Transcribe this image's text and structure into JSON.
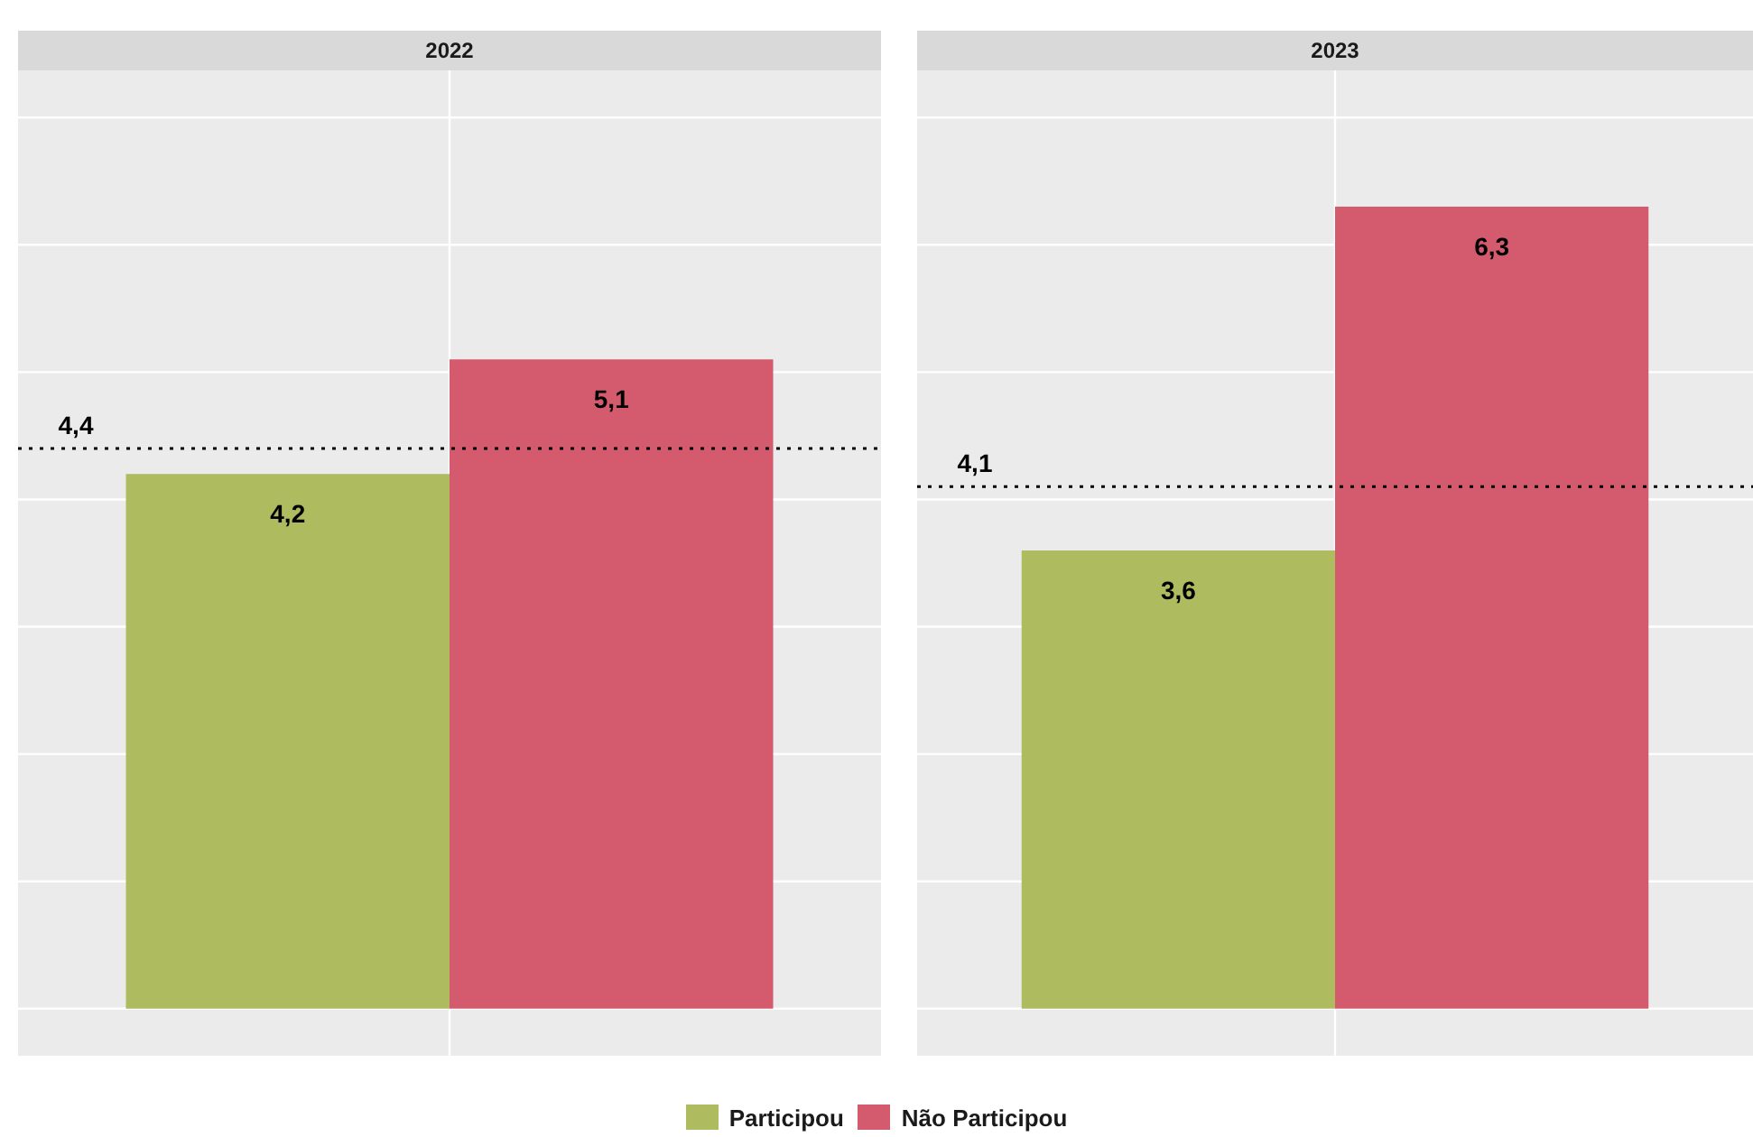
{
  "chart_data": [
    {
      "type": "bar",
      "title": "2022",
      "categories": [
        null
      ],
      "series": [
        {
          "name": "Participou",
          "color": "#afbb5f",
          "values": [
            4.2
          ],
          "value_labels": [
            "4,2"
          ]
        },
        {
          "name": "Não Participou",
          "color": "#d45b6d",
          "values": [
            5.1
          ],
          "value_labels": [
            "5,1"
          ]
        }
      ],
      "ylim": [
        -0.37,
        7.37
      ],
      "yticks": [
        {
          "value": 0,
          "label": null
        },
        {
          "value": 1,
          "label": null
        },
        {
          "value": 2,
          "label": null
        },
        {
          "value": 3,
          "label": null
        },
        {
          "value": 4,
          "label": null
        },
        {
          "value": 5,
          "label": null
        },
        {
          "value": 6,
          "label": null
        },
        {
          "value": 7,
          "label": null
        }
      ],
      "ref_lines": [
        {
          "axis": "y",
          "value": 4.4,
          "label": "4,4",
          "color": "#000000",
          "line_style": "dotted"
        }
      ],
      "grid": true,
      "legend": "bottom"
    },
    {
      "type": "bar",
      "title": "2023",
      "categories": [
        null
      ],
      "series": [
        {
          "color": "#afbb5f",
          "values": [
            3.6
          ],
          "value_labels": [
            "3,6"
          ]
        },
        {
          "color": "#d45b6d",
          "values": [
            6.3
          ],
          "value_labels": [
            "6,3"
          ]
        }
      ],
      "ylim": [
        -0.37,
        7.37
      ],
      "yticks": [
        {
          "value": 0,
          "label": null
        },
        {
          "value": 1,
          "label": null
        },
        {
          "value": 2,
          "label": null
        },
        {
          "value": 3,
          "label": null
        },
        {
          "value": 4,
          "label": null
        },
        {
          "value": 5,
          "label": null
        },
        {
          "value": 6,
          "label": null
        },
        {
          "value": 7,
          "label": null
        }
      ],
      "ref_lines": [
        {
          "axis": "y",
          "value": 4.1,
          "label": "4,1",
          "color": "#000000",
          "line_style": "dotted"
        }
      ],
      "grid": true
    }
  ]
}
